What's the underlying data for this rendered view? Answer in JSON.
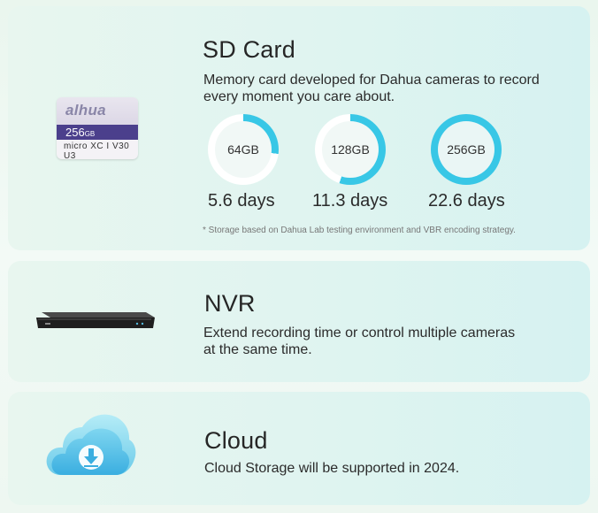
{
  "sd_card": {
    "title": "SD Card",
    "description": "Memory card developed for Dahua cameras to record every moment you care about.",
    "card_image": {
      "brand": "alhua",
      "capacity": "256",
      "unit": "GB",
      "spec": "micro XC I V30 U3"
    },
    "capacities": [
      {
        "label": "64GB",
        "days": "5.6 days",
        "fill": 0.27
      },
      {
        "label": "128GB",
        "days": "11.3 days",
        "fill": 0.55
      },
      {
        "label": "256GB",
        "days": "22.6 days",
        "fill": 1.0
      }
    ],
    "note": "* Storage based on Dahua Lab testing environment and VBR encoding strategy."
  },
  "nvr": {
    "title": "NVR",
    "description": "Extend recording time or control multiple cameras at the same time."
  },
  "cloud": {
    "title": "Cloud",
    "description": "Cloud Storage will be supported in 2024."
  },
  "colors": {
    "ring_accent": "#38c7e6",
    "sd_band": "#4b3f8c",
    "cloud_blue": "#4fc0e6"
  }
}
